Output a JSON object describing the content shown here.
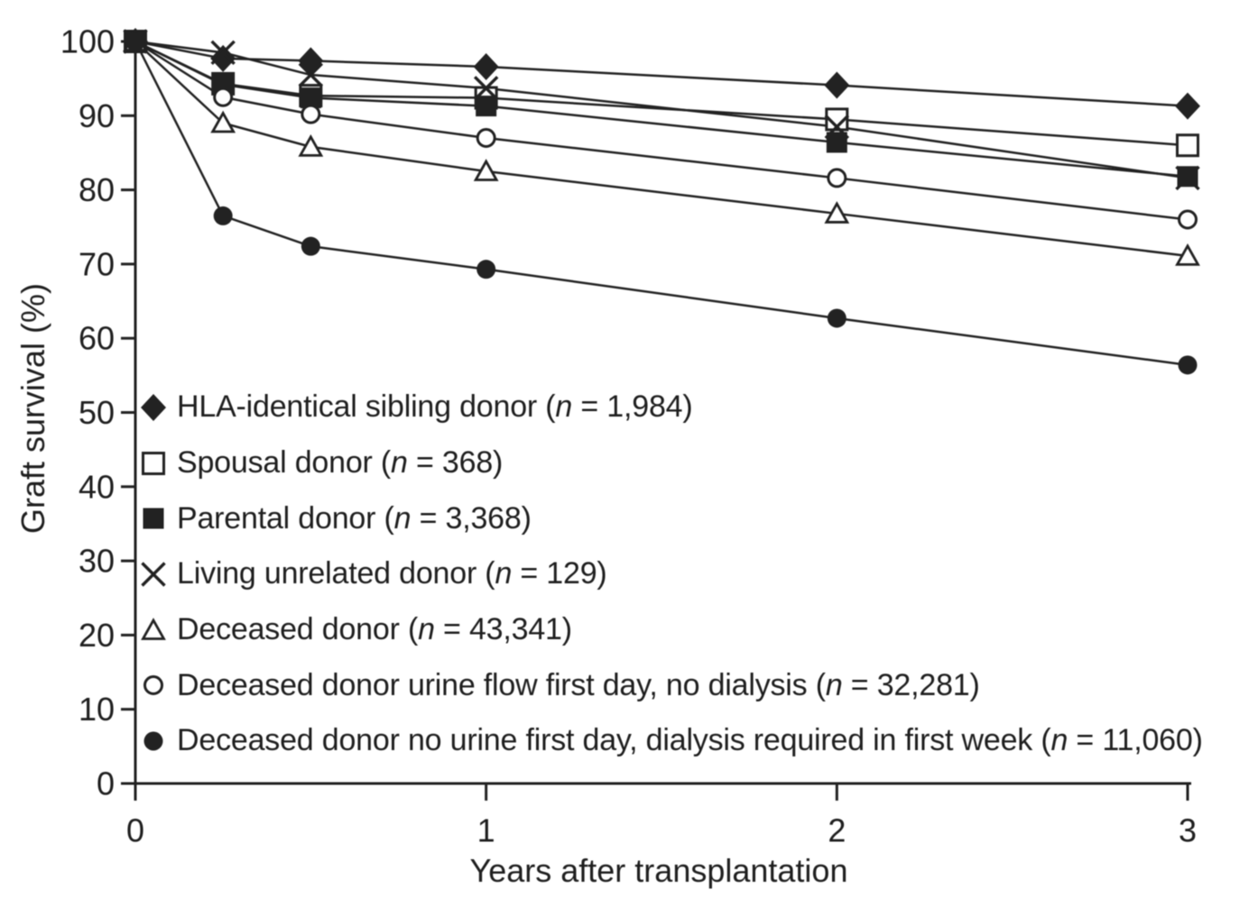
{
  "figure": {
    "kind": "scientific line chart",
    "background": "#ffffff"
  },
  "chart_data": {
    "type": "line",
    "title": "",
    "xlabel": "Years after transplantation",
    "ylabel": "Graft survival (%)",
    "xlim": [
      0,
      3
    ],
    "ylim": [
      0,
      100
    ],
    "xticks": [
      "0",
      "1",
      "2",
      "3"
    ],
    "yticks": [
      "0",
      "10",
      "20",
      "30",
      "40",
      "50",
      "60",
      "70",
      "80",
      "90",
      "100"
    ],
    "grid": false,
    "legend_position": "inside lower-left",
    "x": [
      0,
      0.25,
      0.5,
      1,
      2,
      3
    ],
    "series": [
      {
        "name": "HLA-identical sibling donor",
        "marker": "diamond-filled",
        "legend_pre": "HLA-identical sibling donor (",
        "legend_n": "n",
        "legend_post": " = 1,984)",
        "values": [
          100,
          97.7,
          97.4,
          96.6,
          94.1,
          91.3
        ]
      },
      {
        "name": "Spousal donor",
        "marker": "square-open",
        "legend_pre": "Spousal donor (",
        "legend_n": "n",
        "legend_post": " = 368)",
        "values": [
          100,
          94.3,
          92.7,
          92.4,
          89.5,
          86.0
        ]
      },
      {
        "name": "Parental donor",
        "marker": "square-filled",
        "legend_pre": "Parental donor (",
        "legend_n": "n",
        "legend_post": " = 3,368)",
        "values": [
          100,
          94.2,
          92.4,
          91.3,
          86.4,
          81.8
        ]
      },
      {
        "name": "Living unrelated donor",
        "marker": "cross",
        "legend_pre": "Living unrelated donor (",
        "legend_n": "n",
        "legend_post": " = 129)",
        "values": [
          100,
          98.5,
          95.5,
          93.7,
          88.5,
          81.6
        ]
      },
      {
        "name": "Deceased donor",
        "marker": "triangle-open",
        "legend_pre": "Deceased donor (",
        "legend_n": "n",
        "legend_post": " = 43,341)",
        "values": [
          100,
          89.0,
          85.8,
          82.5,
          76.8,
          71.1
        ]
      },
      {
        "name": "Deceased donor urine flow first day, no dialysis",
        "marker": "circle-open",
        "legend_pre": "Deceased donor urine flow first day, no dialysis (",
        "legend_n": "n",
        "legend_post": " = 32,281)",
        "values": [
          100,
          92.5,
          90.2,
          87.0,
          81.6,
          76.0
        ]
      },
      {
        "name": "Deceased donor no urine first day, dialysis required in first week",
        "marker": "circle-filled",
        "legend_pre": "Deceased donor no urine first day, dialysis required in first week (",
        "legend_n": "n",
        "legend_post": " = 11,060)",
        "values": [
          100,
          76.5,
          72.4,
          69.3,
          62.7,
          56.4
        ]
      }
    ],
    "colors": {
      "ink": "#222222",
      "text": "#1e1e1e",
      "background": "#ffffff"
    }
  }
}
